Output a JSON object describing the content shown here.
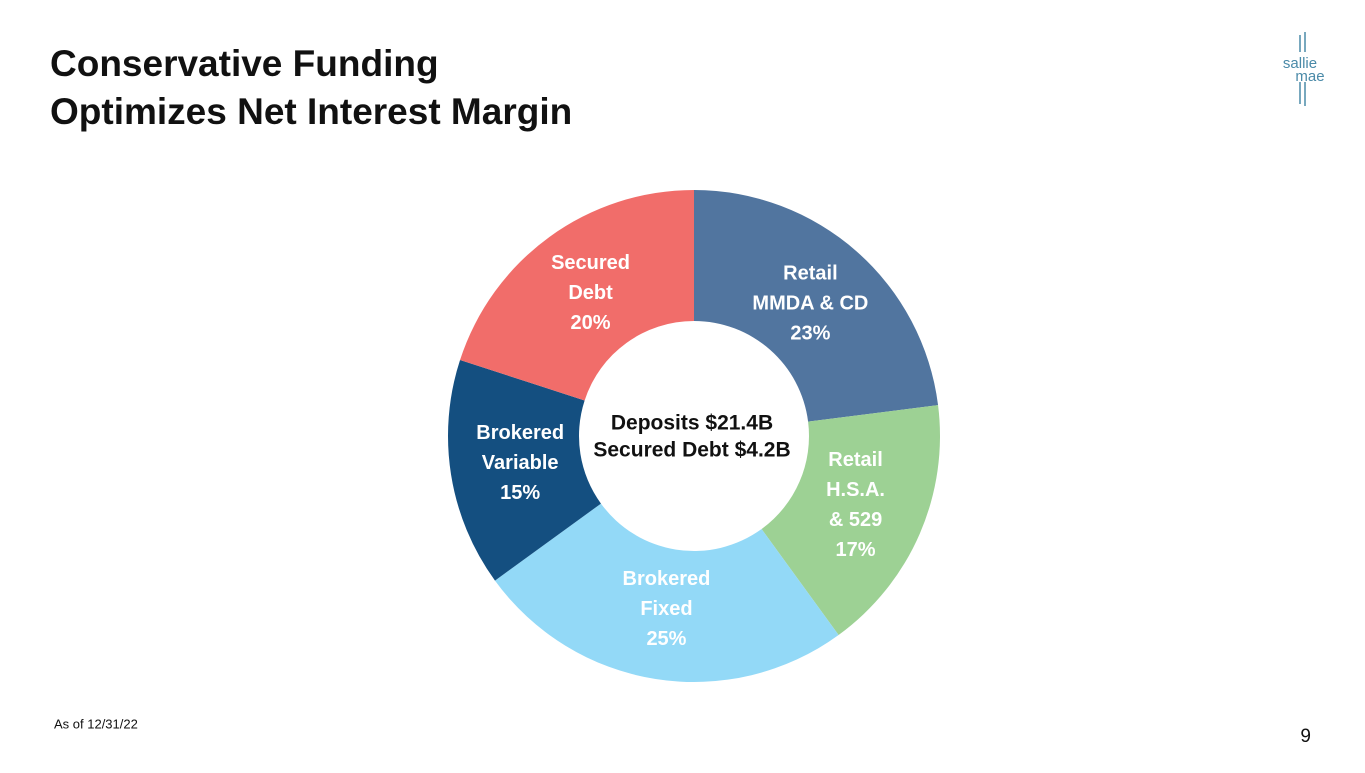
{
  "title": [
    "Conservative Funding",
    "Optimizes Net Interest Margin"
  ],
  "logo": [
    "sallie",
    "mae"
  ],
  "chart_data": {
    "type": "donut",
    "categories": [
      [
        "Retail",
        "MMDA & CD"
      ],
      [
        "Retail",
        "H.S.A.",
        "& 529"
      ],
      [
        "Brokered",
        "Fixed"
      ],
      [
        "Brokered",
        "Variable"
      ],
      [
        "Secured",
        "Debt"
      ]
    ],
    "values": [
      23,
      17,
      25,
      15,
      20
    ],
    "value_labels": [
      "23%",
      "17%",
      "25%",
      "15%",
      "20%"
    ],
    "colors": [
      "#51759f",
      "#9dd194",
      "#93d9f7",
      "#144f80",
      "#f16d6a"
    ],
    "center_label": [
      "Deposits $21.4B",
      "Secured Debt $4.2B"
    ]
  },
  "footnote": "As of 12/31/22",
  "page_number": "9"
}
